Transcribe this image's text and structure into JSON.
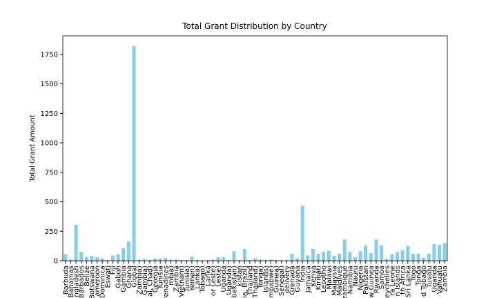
{
  "chart_data": {
    "type": "bar",
    "title": "Total Grant Distribution by Country",
    "y_label": "Total Grant Amount",
    "categories": [
      "Barbuda",
      "Bahamas",
      "ngladesh",
      "Barbados",
      "Belize",
      "Botswana",
      "ameroon",
      "Dominica",
      "Eswati",
      "Fiji",
      "Gabon",
      "Gambia",
      "Ghana",
      "Global",
      "Zambia)",
      "Gambia)",
      "al, Chad)",
      "Georgia",
      "Tunisia",
      "Grenadines",
      "mbia)",
      "Zambia",
      "Vietnam)",
      "Tunisia)",
      "Yemen)",
      "Lanka)",
      "Tobago)",
      "Lanka",
      "or Leste)",
      "Leste)",
      "Uganda",
      "Uganda)",
      "bekistan)",
      "kistan",
      "ia, Brazil)",
      "Thailand",
      "Thailand)",
      "Tonga)",
      "Islands)",
      "mbabwe)",
      "Guinea)",
      "Senegal)",
      "delivery",
      "Grenada",
      "Guyana",
      "India",
      "Jamaica",
      "Kenya",
      "Kiribati",
      "Lesotho",
      "Malawi",
      "Malaysia",
      "Maldives",
      "zambique",
      "Namibia",
      "Nauru",
      "Nigeria",
      "Pakistan",
      "w Guinea",
      "Rwanda",
      "Samoa",
      "Seychelles",
      "ra Leone",
      "n Islands",
      "th Africa",
      "Sri Lanka",
      "Togo",
      "Tonga",
      "d Tobago",
      "Tuvalu",
      "Uganda",
      "Vanuatu",
      "Zambia"
    ],
    "values": [
      55,
      10,
      305,
      75,
      30,
      40,
      30,
      20,
      5,
      45,
      55,
      105,
      165,
      1820,
      10,
      15,
      5,
      20,
      20,
      25,
      10,
      10,
      5,
      5,
      35,
      5,
      3,
      5,
      10,
      30,
      30,
      5,
      80,
      5,
      100,
      5,
      20,
      10,
      5,
      10,
      5,
      3,
      5,
      60,
      20,
      465,
      45,
      100,
      60,
      75,
      85,
      40,
      60,
      180,
      75,
      30,
      80,
      130,
      65,
      180,
      130,
      15,
      55,
      75,
      90,
      125,
      60,
      60,
      25,
      60,
      140,
      135,
      150
    ],
    "color": "#87ceeb",
    "ylim": [
      0,
      1907
    ],
    "yticks": [
      0,
      250,
      500,
      750,
      1000,
      1250,
      1500,
      1750
    ]
  }
}
